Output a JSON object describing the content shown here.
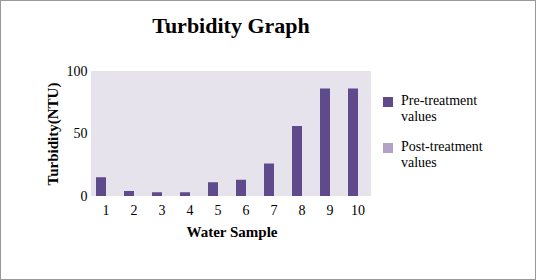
{
  "chart_data": {
    "type": "bar",
    "title": "Turbidity Graph",
    "x_label": "Water Sample",
    "y_label": "Turbidity(NTU)",
    "categories": [
      1,
      2,
      3,
      4,
      5,
      6,
      7,
      8,
      9,
      10
    ],
    "series": [
      {
        "name": "Pre-treatment values",
        "color": "#5f4b8b",
        "values": [
          15,
          4,
          3,
          3,
          11,
          13,
          26,
          56,
          86,
          86
        ]
      },
      {
        "name": "Post-treatment values",
        "color": "#b3a2c7",
        "values": [
          0,
          0,
          0,
          0,
          0,
          0,
          0,
          0,
          0,
          0
        ]
      }
    ],
    "ylim": [
      0,
      100
    ],
    "yticks": [
      0,
      50,
      100
    ],
    "grid": false,
    "legend": "right"
  }
}
